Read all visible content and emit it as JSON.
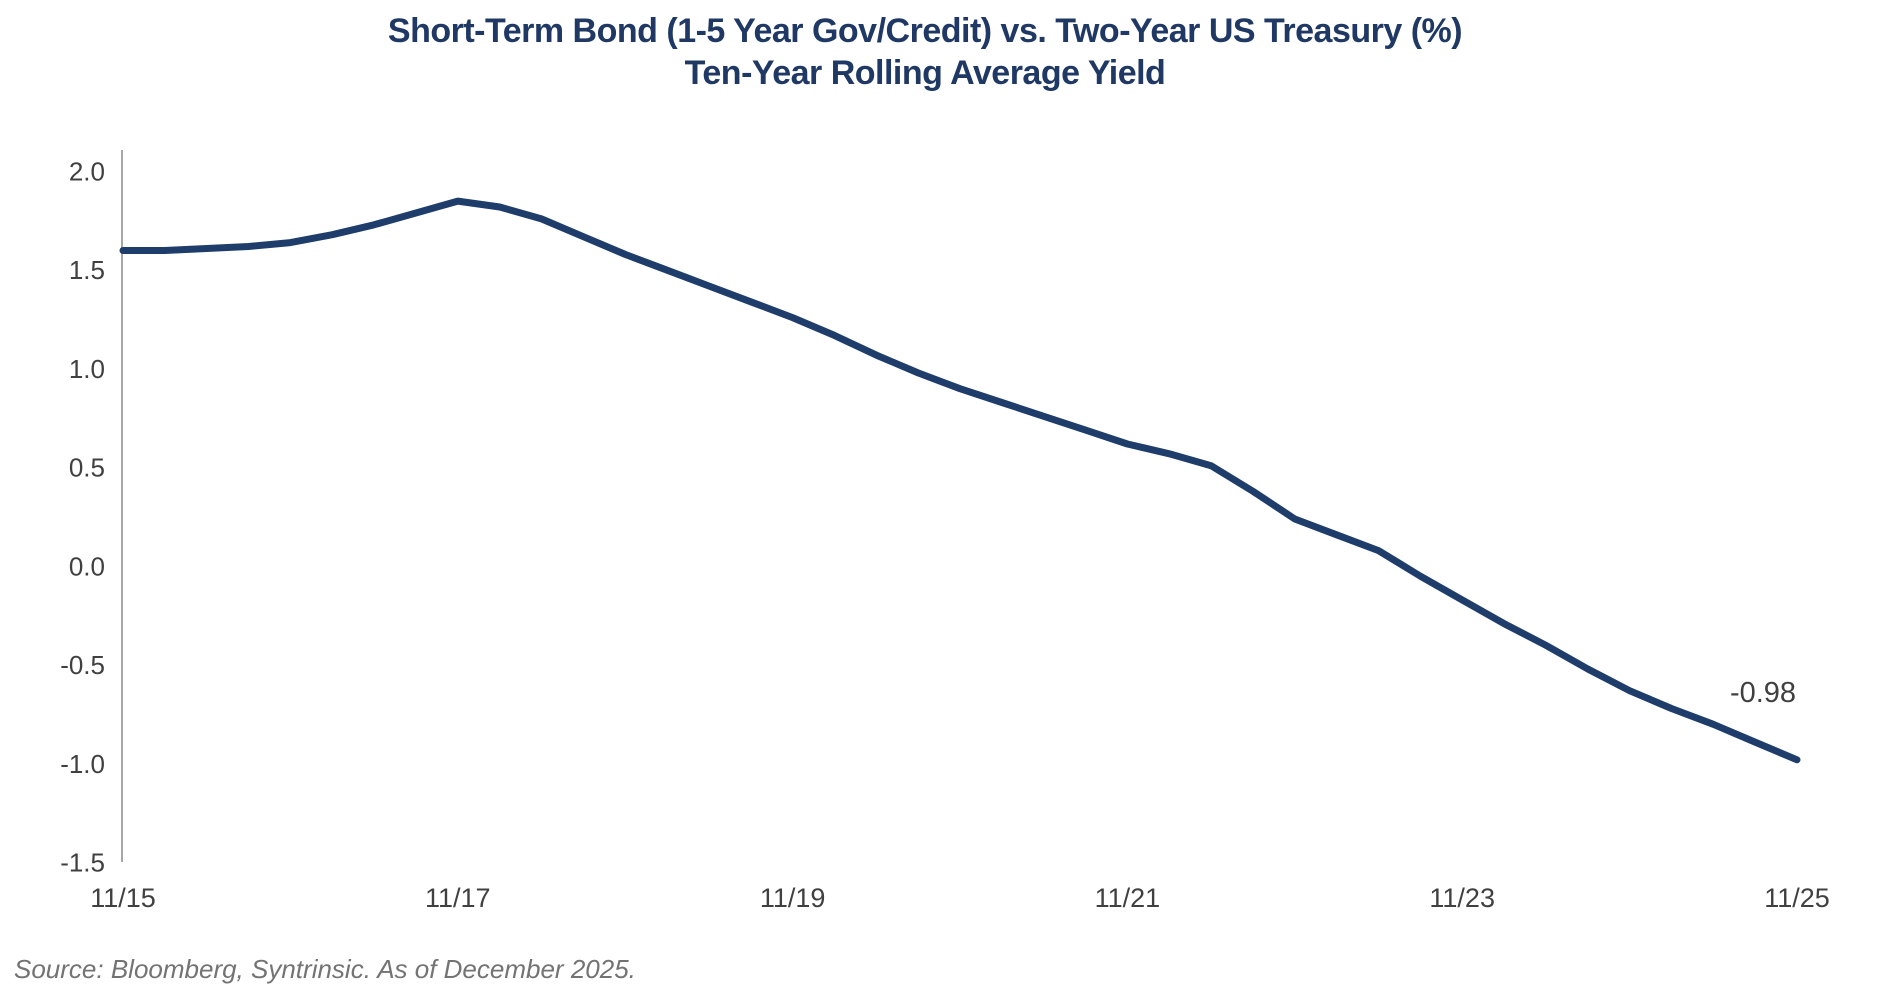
{
  "chart_title": {
    "line1": "Short-Term Bond (1-5 Year Gov/Credit) vs. Two-Year US Treasury (%)",
    "line2": "Ten-Year Rolling Average Yield"
  },
  "source_note": "Source: Bloomberg, Syntrinsic. As of December 2025.",
  "colors": {
    "line": "#1F3D6B",
    "title": "#1F3864",
    "tick_label": "#404040",
    "axis_line": "#A6A6A6",
    "end_label": "#404040",
    "source": "#737373"
  },
  "chart_data": {
    "type": "line",
    "title": "Short-Term Bond (1-5 Year Gov/Credit) vs. Two-Year US Treasury (%) — Ten-Year Rolling Average Yield",
    "xlabel": "",
    "ylabel": "",
    "x_tick_labels": [
      "11/15",
      "11/17",
      "11/19",
      "11/21",
      "11/23",
      "11/25"
    ],
    "y_tick_values": [
      2.0,
      1.5,
      1.0,
      0.5,
      0.0,
      -0.5,
      -1.0,
      -1.5
    ],
    "ylim": [
      -1.5,
      2.0
    ],
    "xlim": [
      0,
      10
    ],
    "x_axis_unit": "years since 11/2015",
    "grid": false,
    "legend_position": "none",
    "series": [
      {
        "name": "Ten-Year Rolling Average Yield",
        "x": [
          0,
          0.25,
          0.5,
          0.75,
          1.0,
          1.25,
          1.5,
          1.75,
          2.0,
          2.25,
          2.5,
          2.75,
          3.0,
          3.25,
          3.5,
          3.75,
          4.0,
          4.25,
          4.5,
          4.75,
          5.0,
          5.25,
          5.5,
          5.75,
          6.0,
          6.25,
          6.5,
          6.75,
          7.0,
          7.25,
          7.5,
          7.75,
          8.0,
          8.25,
          8.5,
          8.75,
          9.0,
          9.25,
          9.5,
          9.75,
          10.0
        ],
        "y": [
          1.6,
          1.6,
          1.61,
          1.62,
          1.64,
          1.68,
          1.73,
          1.79,
          1.85,
          1.82,
          1.76,
          1.67,
          1.58,
          1.5,
          1.42,
          1.34,
          1.26,
          1.17,
          1.07,
          0.98,
          0.9,
          0.83,
          0.76,
          0.69,
          0.62,
          0.57,
          0.51,
          0.38,
          0.24,
          0.16,
          0.08,
          -0.05,
          -0.17,
          -0.29,
          -0.4,
          -0.52,
          -0.63,
          -0.72,
          -0.8,
          -0.89,
          -0.98
        ]
      }
    ],
    "end_label": "-0.98"
  }
}
